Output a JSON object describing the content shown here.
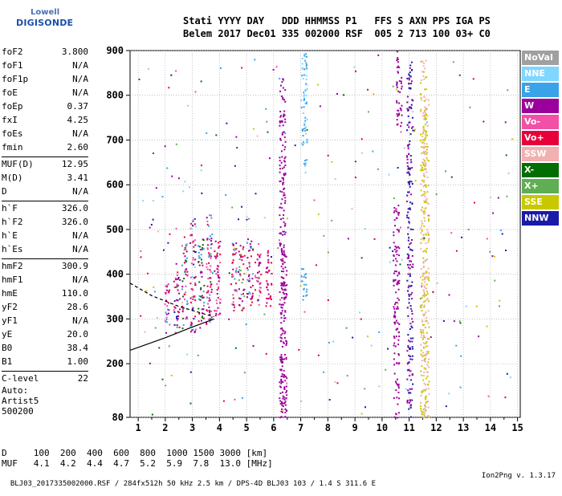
{
  "logo": {
    "line1": "Lowell",
    "line2": "DIGISONDE"
  },
  "header": {
    "line1": "Stati YYYY DAY   DDD HHMMSS P1   FFS S AXN PPS IGA PS",
    "line2": "Belem 2017 Dec01 335 002000 RSF  005 2 713 100 03+ C0"
  },
  "params": {
    "g1": [
      {
        "label": "foF2",
        "value": "3.800"
      },
      {
        "label": "foF1",
        "value": "N/A"
      },
      {
        "label": "foF1p",
        "value": "N/A"
      },
      {
        "label": "foE",
        "value": "N/A"
      },
      {
        "label": "foEp",
        "value": "0.37"
      },
      {
        "label": "fxI",
        "value": "4.25"
      },
      {
        "label": "foEs",
        "value": "N/A"
      },
      {
        "label": "fmin",
        "value": "2.60"
      }
    ],
    "g2": [
      {
        "label": "MUF(D)",
        "value": "12.95"
      },
      {
        "label": "M(D)",
        "value": "3.41"
      },
      {
        "label": "D",
        "value": "N/A"
      }
    ],
    "g3": [
      {
        "label": "h`F",
        "value": "326.0"
      },
      {
        "label": "h`F2",
        "value": "326.0"
      },
      {
        "label": "h`E",
        "value": "N/A"
      },
      {
        "label": "h`Es",
        "value": "N/A"
      }
    ],
    "g4": [
      {
        "label": "hmF2",
        "value": "300.9"
      },
      {
        "label": "hmF1",
        "value": "N/A"
      },
      {
        "label": "hmE",
        "value": "110.0"
      },
      {
        "label": "yF2",
        "value": "28.6"
      },
      {
        "label": "yF1",
        "value": "N/A"
      },
      {
        "label": "yE",
        "value": "20.0"
      },
      {
        "label": "B0",
        "value": "38.4"
      },
      {
        "label": "B1",
        "value": "1.00"
      }
    ],
    "g5": [
      {
        "label": "C-level",
        "value": "22"
      }
    ]
  },
  "auto": {
    "line1": "Auto:",
    "line2": "Artist5",
    "line3": "500200"
  },
  "dmuf": {
    "d_line": "D     100  200  400  600  800  1000 1500 3000 [km]",
    "muf_line": "MUF   4.1  4.2  4.4  4.7  5.2  5.9  7.8  13.0 [MHz]"
  },
  "footer": {
    "left": "BLJ03_2017335002000.RSF / 284fx512h 50 kHz 2.5 km / DPS-4D BLJ03 103 / 1.4 S 311.6 E",
    "right": "Ion2Png v. 1.3.17"
  },
  "legend": [
    {
      "label": "NoVal",
      "color": "#a0a0a0"
    },
    {
      "label": "NNE",
      "color": "#7fd6ff"
    },
    {
      "label": "E",
      "color": "#3aa2e8"
    },
    {
      "label": "W",
      "color": "#9c009c"
    },
    {
      "label": "Vo-",
      "color": "#f24fa7"
    },
    {
      "label": "Vo+",
      "color": "#e8003a"
    },
    {
      "label": "SSW",
      "color": "#f2b0b0"
    },
    {
      "label": "X-",
      "color": "#006e00"
    },
    {
      "label": "X+",
      "color": "#5fae52"
    },
    {
      "label": "SSE",
      "color": "#c8c800"
    },
    {
      "label": "NNW",
      "color": "#1a1aa8"
    }
  ],
  "chart_data": {
    "type": "scatter",
    "xlim": [
      0.7,
      15.1
    ],
    "ylim": [
      80,
      900
    ],
    "x_ticks": [
      1,
      2,
      3,
      4,
      5,
      6,
      7,
      8,
      9,
      10,
      11,
      12,
      13,
      14,
      15
    ],
    "y_ticks": [
      80,
      200,
      300,
      400,
      500,
      600,
      700,
      800,
      900
    ],
    "grid": true,
    "legend_position": "right",
    "trace_lines": [
      {
        "name": "",
        "style": "solid",
        "points": [
          [
            0.7,
            230
          ],
          [
            2.0,
            258
          ],
          [
            3.0,
            282
          ],
          [
            3.8,
            300
          ]
        ]
      },
      {
        "name": "",
        "style": "dashed",
        "points": [
          [
            0.7,
            380
          ],
          [
            1.5,
            352
          ],
          [
            2.5,
            328
          ],
          [
            3.5,
            310
          ],
          [
            3.8,
            305
          ]
        ]
      }
    ],
    "columns": [
      {
        "x": 2.05,
        "ymin": 270,
        "ymax": 380,
        "colors": [
          "#e8003a",
          "#9c009c",
          "#f24fa7",
          "#3aa2e8"
        ]
      },
      {
        "x": 2.4,
        "ymin": 270,
        "ymax": 420,
        "colors": [
          "#e8003a",
          "#9c009c",
          "#f24fa7",
          "#1a1aa8"
        ]
      },
      {
        "x": 2.7,
        "ymin": 280,
        "ymax": 470,
        "colors": [
          "#e8003a",
          "#9c009c",
          "#f24fa7",
          "#3aa2e8",
          "#006e00"
        ]
      },
      {
        "x": 3.0,
        "ymin": 270,
        "ymax": 530,
        "colors": [
          "#e8003a",
          "#9c009c",
          "#f24fa7",
          "#1a1aa8",
          "#7fd6ff"
        ]
      },
      {
        "x": 3.3,
        "ymin": 280,
        "ymax": 480,
        "colors": [
          "#e8003a",
          "#9c009c",
          "#3aa2e8",
          "#006e00"
        ]
      },
      {
        "x": 3.6,
        "ymin": 290,
        "ymax": 550,
        "colors": [
          "#e8003a",
          "#9c009c",
          "#f24fa7",
          "#3aa2e8"
        ]
      },
      {
        "x": 3.9,
        "ymin": 300,
        "ymax": 480,
        "colors": [
          "#e8003a",
          "#9c009c",
          "#f24fa7"
        ]
      },
      {
        "x": 4.5,
        "ymin": 320,
        "ymax": 480,
        "colors": [
          "#e8003a",
          "#9c009c",
          "#f24fa7",
          "#3aa2e8"
        ]
      },
      {
        "x": 4.8,
        "ymin": 320,
        "ymax": 470,
        "colors": [
          "#e8003a",
          "#9c009c",
          "#5fae52"
        ]
      },
      {
        "x": 5.1,
        "ymin": 330,
        "ymax": 480,
        "colors": [
          "#e8003a",
          "#3aa2e8",
          "#9c009c"
        ]
      },
      {
        "x": 5.4,
        "ymin": 330,
        "ymax": 470,
        "colors": [
          "#e8003a",
          "#9c009c",
          "#f24fa7"
        ]
      },
      {
        "x": 5.8,
        "ymin": 330,
        "ymax": 460,
        "colors": [
          "#e8003a",
          "#9c009c"
        ]
      },
      {
        "x": 6.3,
        "ymin": 80,
        "ymax": 840,
        "colors": [
          "#9c009c"
        ]
      },
      {
        "x": 6.35,
        "ymin": 80,
        "ymax": 460,
        "colors": [
          "#9c009c"
        ]
      },
      {
        "x": 7.1,
        "ymin": 620,
        "ymax": 900,
        "colors": [
          "#3aa2e8",
          "#7fd6ff"
        ]
      },
      {
        "x": 7.1,
        "ymin": 340,
        "ymax": 420,
        "colors": [
          "#3aa2e8"
        ]
      },
      {
        "x": 10.5,
        "ymin": 80,
        "ymax": 560,
        "colors": [
          "#9c009c"
        ]
      },
      {
        "x": 10.6,
        "ymin": 730,
        "ymax": 900,
        "colors": [
          "#9c009c"
        ]
      },
      {
        "x": 11.0,
        "ymin": 80,
        "ymax": 880,
        "colors": [
          "#9c009c",
          "#1a1aa8"
        ]
      },
      {
        "x": 11.5,
        "ymin": 80,
        "ymax": 880,
        "colors": [
          "#c8c800",
          "#f2b0b0"
        ]
      },
      {
        "x": 11.6,
        "ymin": 80,
        "ymax": 800,
        "colors": [
          "#c8c800",
          "#f2b0b0"
        ]
      }
    ],
    "scatter_noise": {
      "count": 260,
      "colors": [
        "#9c009c",
        "#3aa2e8",
        "#7fd6ff",
        "#e8003a",
        "#f24fa7",
        "#f2b0b0",
        "#006e00",
        "#5fae52",
        "#c8c800",
        "#1a1aa8"
      ]
    }
  }
}
